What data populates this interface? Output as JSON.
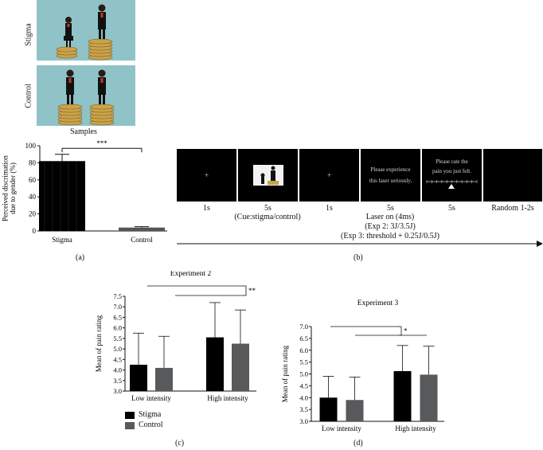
{
  "samples": {
    "row1_label": "Stigma",
    "row2_label": "Control",
    "caption": "Samples"
  },
  "panel_labels": {
    "a": "(a)",
    "b": "(b)",
    "c": "(c)",
    "d": "(d)"
  },
  "timeline": {
    "durations": [
      "1s",
      "5s",
      "1s",
      "5s",
      "5s",
      "Random 1-2s"
    ],
    "cue_label": "(Cue:stigma/control)",
    "laser_label": "Laser on (4ms)",
    "exp2_label": "(Exp 2: 3J/3.5J)",
    "exp3_label": "(Exp 3: threshold + 0.25J/0.5J)",
    "screen_fixation": "+",
    "screen_experience_text": [
      "Please experience",
      "this laser seriously."
    ],
    "screen_rate_text": [
      "Please rate the",
      "pain you just felt."
    ]
  },
  "chart_data": [
    {
      "type": "bar",
      "categories": [
        "Stigma",
        "Control"
      ],
      "values": [
        82,
        4
      ],
      "errors": [
        8,
        1
      ],
      "ylabel": "Perceived discrimation due to gender (%)",
      "ylim": [
        0,
        100
      ],
      "yticks": [
        0,
        20,
        40,
        60,
        80,
        100
      ],
      "significance": "***",
      "colors": [
        "#000000",
        "#555555"
      ]
    },
    {
      "type": "bar",
      "title": "Experiment 2",
      "categories": [
        "Low intensity",
        "High intensity"
      ],
      "series": [
        {
          "name": "Stigma",
          "values": [
            4.25,
            5.55
          ],
          "errors": [
            1.5,
            1.65
          ]
        },
        {
          "name": "Control",
          "values": [
            4.1,
            5.25
          ],
          "errors": [
            1.5,
            1.6
          ]
        }
      ],
      "ylabel": "Mean of pain rating",
      "ylim": [
        3.0,
        7.5
      ],
      "yticks": [
        3.0,
        3.5,
        4.0,
        4.5,
        5.0,
        5.5,
        6.0,
        6.5,
        7.0,
        7.5
      ],
      "significance": "**",
      "colors": [
        "#000000",
        "#58595b"
      ]
    },
    {
      "type": "bar",
      "title": "Experiment 3",
      "categories": [
        "Low intensity",
        "High intensity"
      ],
      "series": [
        {
          "name": "Stigma",
          "values": [
            4.0,
            5.12
          ],
          "errors": [
            0.9,
            1.08
          ]
        },
        {
          "name": "Control",
          "values": [
            3.9,
            4.97
          ],
          "errors": [
            0.97,
            1.2
          ]
        }
      ],
      "ylabel": "Mean of pain rating",
      "ylim": [
        3.0,
        7.0
      ],
      "yticks": [
        3.0,
        3.5,
        4.0,
        4.5,
        5.0,
        5.5,
        6.0,
        6.5,
        7.0
      ],
      "significance": "*",
      "colors": [
        "#000000",
        "#58595b"
      ]
    }
  ]
}
